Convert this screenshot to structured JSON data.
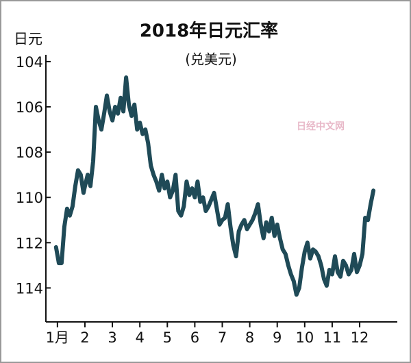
{
  "chart_data": {
    "type": "line",
    "title": "2018年日元汇率",
    "subtitle": "(兑美元)",
    "y_label": "日元",
    "watermark": "日经中文网",
    "color": "#1f4a57",
    "y_reversed": true,
    "xlim": [
      0.58,
      13.37
    ],
    "ylim": [
      103.7,
      115.5
    ],
    "xticks": [
      {
        "value": 1,
        "label": "1月"
      },
      2,
      3,
      4,
      5,
      6,
      7,
      8,
      9,
      10,
      11,
      12
    ],
    "yticks": [
      104,
      106,
      108,
      110,
      112,
      114
    ],
    "x": [
      0.95,
      1.05,
      1.15,
      1.25,
      1.35,
      1.45,
      1.55,
      1.65,
      1.75,
      1.85,
      1.95,
      2.0,
      2.1,
      2.2,
      2.3,
      2.4,
      2.5,
      2.6,
      2.7,
      2.8,
      2.9,
      3.0,
      3.1,
      3.2,
      3.3,
      3.4,
      3.5,
      3.6,
      3.7,
      3.8,
      3.9,
      4.0,
      4.1,
      4.2,
      4.3,
      4.4,
      4.5,
      4.6,
      4.7,
      4.8,
      4.9,
      5.0,
      5.1,
      5.2,
      5.3,
      5.4,
      5.5,
      5.6,
      5.7,
      5.8,
      5.9,
      6.0,
      6.1,
      6.2,
      6.3,
      6.4,
      6.5,
      6.6,
      6.7,
      6.8,
      6.9,
      7.0,
      7.1,
      7.2,
      7.3,
      7.4,
      7.5,
      7.6,
      7.7,
      7.8,
      7.9,
      8.0,
      8.1,
      8.2,
      8.3,
      8.4,
      8.5,
      8.6,
      8.7,
      8.8,
      8.9,
      9.0,
      9.1,
      9.2,
      9.3,
      9.4,
      9.5,
      9.6,
      9.7,
      9.8,
      9.9,
      10.0,
      10.1,
      10.2,
      10.3,
      10.4,
      10.5,
      10.6,
      10.7,
      10.8,
      10.9,
      11.0,
      11.1,
      11.2,
      11.3,
      11.4,
      11.5,
      11.6,
      11.7,
      11.8,
      11.9,
      12.0,
      12.1,
      12.2,
      12.3,
      12.4,
      12.5
    ],
    "values": [
      112.2,
      112.9,
      112.9,
      111.3,
      110.5,
      110.8,
      110.4,
      109.5,
      108.8,
      109.0,
      109.8,
      109.5,
      109.0,
      109.5,
      108.4,
      106.0,
      106.6,
      107.0,
      106.3,
      105.5,
      106.2,
      106.6,
      106.0,
      106.3,
      105.6,
      106.2,
      104.7,
      105.9,
      106.4,
      105.9,
      107.0,
      106.7,
      107.2,
      107.0,
      107.6,
      108.6,
      109.0,
      109.3,
      109.7,
      109.0,
      109.6,
      109.3,
      110.0,
      109.7,
      109.0,
      110.6,
      110.8,
      110.4,
      109.3,
      109.9,
      109.6,
      110.0,
      109.3,
      110.2,
      110.0,
      110.6,
      110.4,
      110.1,
      109.8,
      110.5,
      111.2,
      111.0,
      110.9,
      110.3,
      111.3,
      112.1,
      112.6,
      111.5,
      111.2,
      111.0,
      111.4,
      111.2,
      111.0,
      110.7,
      110.3,
      111.2,
      111.8,
      111.1,
      111.5,
      110.9,
      111.7,
      111.2,
      111.8,
      112.3,
      112.5,
      113.0,
      113.4,
      113.7,
      114.3,
      114.0,
      113.1,
      112.4,
      112.0,
      112.7,
      112.3,
      112.4,
      112.6,
      113.0,
      113.6,
      113.9,
      113.2,
      113.4,
      112.6,
      113.3,
      113.5,
      112.8,
      113.0,
      113.4,
      113.2,
      112.5,
      113.3,
      113.0,
      112.5,
      110.9,
      111.0,
      110.3,
      109.7
    ]
  }
}
